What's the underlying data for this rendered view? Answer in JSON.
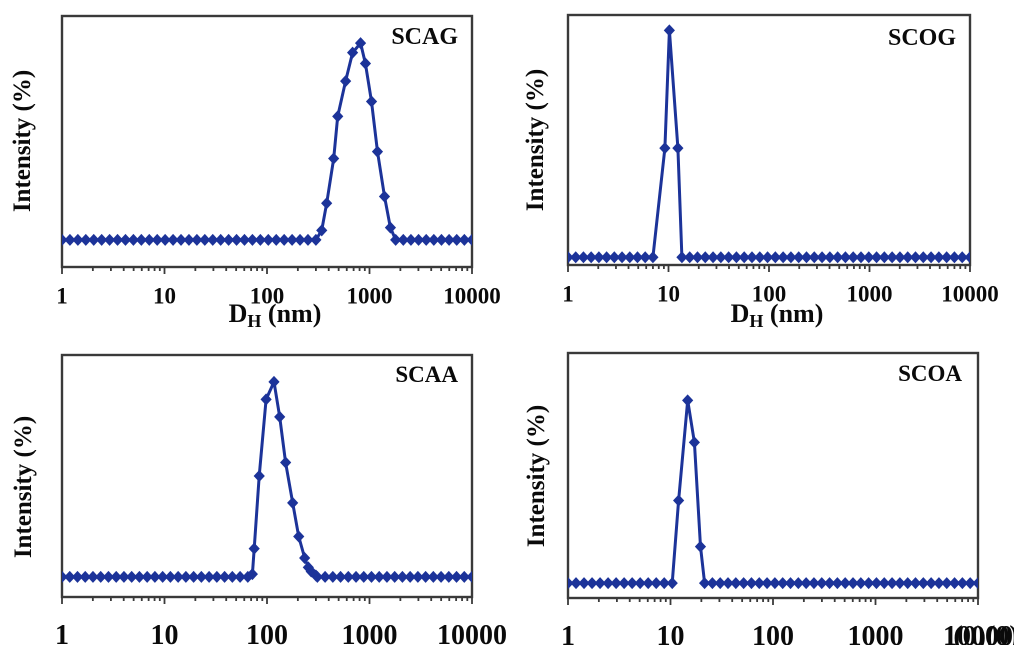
{
  "figure": {
    "background": "#ffffff",
    "marker_color": "#1c3399",
    "axis_color": "#3a3a3a",
    "text_color": "#0a0a0a",
    "panel_count": 4,
    "description_labels": [
      "SCAG",
      "SCOG",
      "SCAA",
      "SCOA"
    ]
  },
  "chart_data": [
    {
      "type": "line",
      "panel": "top-left",
      "title": "SCAG",
      "ylabel": "Intensity (%)",
      "xlabel": "D_H (nm)",
      "xlabel_parts": {
        "base": "D",
        "sub": "H",
        "rest": " (nm)"
      },
      "xlabel_visible": true,
      "xscale": "log",
      "xlim": [
        1,
        10000
      ],
      "x_tick_labels": [
        "1",
        "10",
        "100",
        "1000",
        "10000"
      ],
      "ylim": [
        -1.5,
        17
      ],
      "grid": false,
      "legend": null,
      "marker": "diamond",
      "line_color": "#1c3399",
      "baseline_intensity_pct": 0.5,
      "baseline_points_per_decade": 13,
      "baseline_segments_nm": [
        [
          1,
          300
        ],
        [
          1800,
          10000
        ]
      ],
      "peak_points_nm_pct": [
        [
          342,
          1.2
        ],
        [
          382,
          3.2
        ],
        [
          447,
          6.5
        ],
        [
          490,
          9.6
        ],
        [
          585,
          12.2
        ],
        [
          684,
          14.3
        ],
        [
          818,
          15.0
        ],
        [
          913,
          13.5
        ],
        [
          1047,
          10.7
        ],
        [
          1196,
          7.0
        ],
        [
          1400,
          3.7
        ],
        [
          1600,
          1.4
        ]
      ],
      "peak_position_nm": 818
    },
    {
      "type": "line",
      "panel": "top-right",
      "title": "SCOG",
      "ylabel": "Intensity (%)",
      "xlabel": "D_H (nm)",
      "xlabel_parts": {
        "base": "D",
        "sub": "H",
        "rest": " (nm)"
      },
      "xlabel_visible": true,
      "xscale": "log",
      "xlim": [
        1,
        10000
      ],
      "x_tick_labels": [
        "1",
        "10",
        "100",
        "1000",
        "10000"
      ],
      "ylim": [
        -0.5,
        32
      ],
      "grid": false,
      "legend": null,
      "marker": "diamond",
      "line_color": "#1c3399",
      "baseline_intensity_pct": 0.5,
      "baseline_points_per_decade": 13,
      "baseline_segments_nm": [
        [
          1,
          7.0
        ],
        [
          13.6,
          10000
        ]
      ],
      "peak_points_nm_pct": [
        [
          9.2,
          14.7
        ],
        [
          10.2,
          30.0
        ],
        [
          12.4,
          14.7
        ]
      ],
      "peak_position_nm": 10.2
    },
    {
      "type": "line",
      "panel": "bottom-left",
      "title": "SCAA",
      "ylabel": "Intensity (%)",
      "xlabel": null,
      "xlabel_parts": null,
      "xlabel_visible": false,
      "xscale": "log",
      "xlim": [
        1,
        10000
      ],
      "x_tick_labels": [
        "1",
        "10",
        "100",
        "1000",
        "10000"
      ],
      "ylim": [
        -1,
        17
      ],
      "grid": false,
      "legend": null,
      "marker": "diamond",
      "line_color": "#1c3399",
      "baseline_intensity_pct": 0.5,
      "baseline_points_per_decade": 13,
      "baseline_segments_nm": [
        [
          1,
          65
        ],
        [
          310,
          10000
        ]
      ],
      "peak_points_nm_pct": [
        [
          72,
          0.7
        ],
        [
          75,
          2.6
        ],
        [
          84,
          8.0
        ],
        [
          98,
          13.7
        ],
        [
          117,
          15.0
        ],
        [
          133,
          12.4
        ],
        [
          152,
          9.0
        ],
        [
          178,
          6.0
        ],
        [
          204,
          3.5
        ],
        [
          233,
          1.9
        ],
        [
          253,
          1.2
        ],
        [
          270,
          0.9
        ],
        [
          300,
          0.6
        ]
      ],
      "peak_position_nm": 117
    },
    {
      "type": "line",
      "panel": "bottom-right",
      "title": "SCOA",
      "ylabel": "Intensity (%)",
      "xlabel": null,
      "xlabel_parts": null,
      "xlabel_visible": false,
      "xscale": "log",
      "xlim": [
        1,
        10000
      ],
      "x_tick_labels": [
        "1",
        "10",
        "100",
        "1000",
        "10000"
      ],
      "x_tick_overlap_artifact": "(0)(0)",
      "ylim": [
        -0.6,
        17.5
      ],
      "grid": false,
      "legend": null,
      "marker": "diamond",
      "line_color": "#1c3399",
      "baseline_intensity_pct": 0.5,
      "baseline_points_per_decade": 13,
      "baseline_segments_nm": [
        [
          1,
          10.4
        ],
        [
          21.5,
          10000
        ]
      ],
      "peak_points_nm_pct": [
        [
          12,
          6.6
        ],
        [
          14.7,
          14.0
        ],
        [
          17.1,
          10.9
        ],
        [
          19.6,
          3.2
        ]
      ],
      "peak_position_nm": 14.7
    }
  ]
}
